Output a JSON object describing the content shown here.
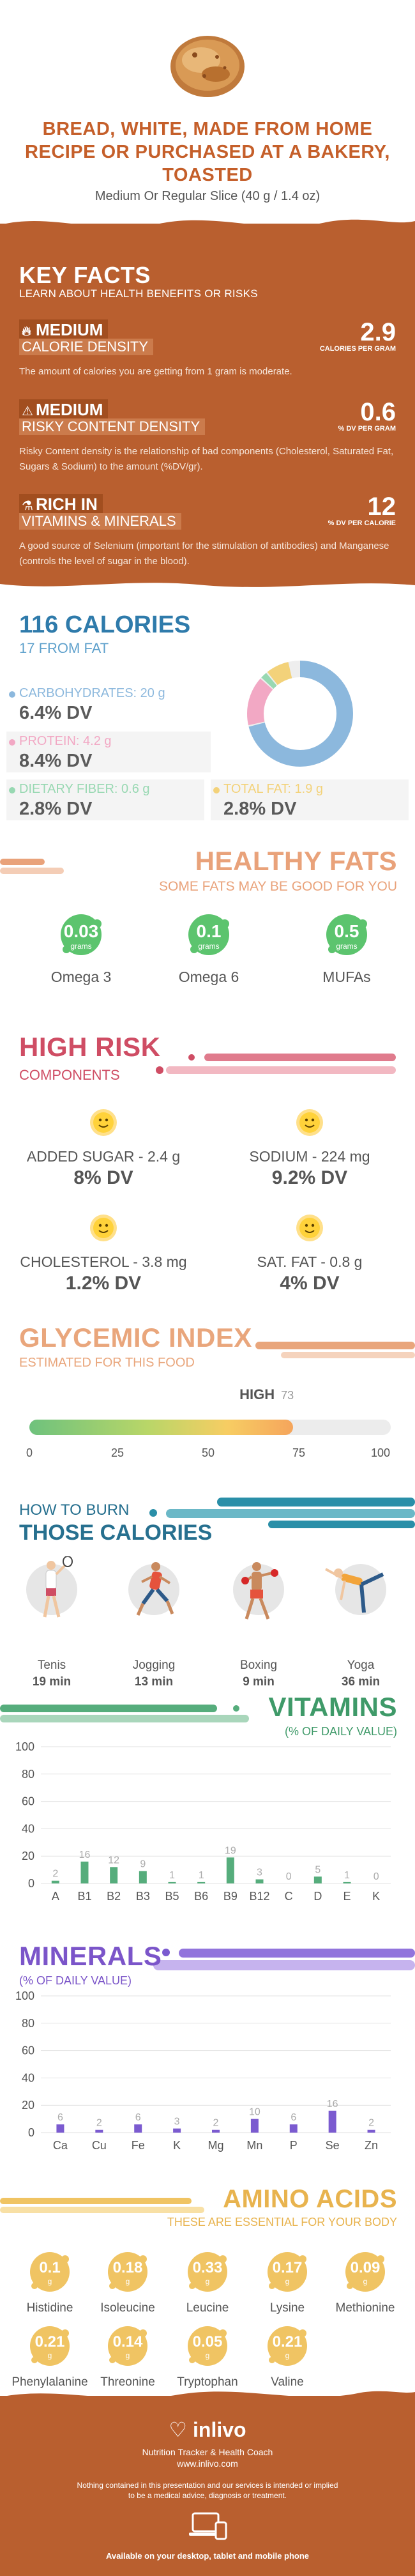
{
  "header": {
    "title": "BREAD, WHITE, MADE FROM HOME RECIPE OR PURCHASED AT A BAKERY, TOASTED",
    "serving": "Medium Or Regular Slice (40 g / 1.4 oz)"
  },
  "key_facts": {
    "title": "KEY FACTS",
    "subtitle": "LEARN ABOUT HEALTH BENEFITS OR RISKS",
    "items": [
      {
        "level": "MEDIUM",
        "name": "CALORIE DENSITY",
        "value": "2.9",
        "unit": "CALORIES PER GRAM",
        "description": "The amount of calories you are getting from 1 gram is moderate.",
        "icon": "flame-icon"
      },
      {
        "level": "MEDIUM",
        "name": "RISKY CONTENT DENSITY",
        "value": "0.6",
        "unit": "% DV PER GRAM",
        "description": "Risky Content density is the relationship of bad components (Cholesterol, Saturated Fat, Sugars & Sodium) to the amount (%DV/gr).",
        "icon": "warning-icon"
      },
      {
        "level": "RICH  IN",
        "name": "VITAMINS & MINERALS",
        "value": "12",
        "unit": "% DV PER CALORIE",
        "description": "A good source of Selenium (important for the stimulation of antibodies) and Manganese (controls the level of sugar in the blood).",
        "icon": "flask-icon"
      }
    ]
  },
  "calories": {
    "title": "116 CALORIES",
    "subtitle": "17 FROM FAT",
    "macros": [
      {
        "label": "CARBOHYDRATES:",
        "amount": "20 g",
        "dv": "6.4% DV",
        "color": "#8cb8dd",
        "share": 0.71
      },
      {
        "label": "PROTEIN:",
        "amount": "4.2 g",
        "dv": "8.4% DV",
        "color": "#f2a8c4",
        "share": 0.15
      },
      {
        "label": "DIETARY FIBER:",
        "amount": "0.6 g",
        "dv": "2.8% DV",
        "color": "#98d8b2",
        "share": 0.02
      },
      {
        "label": "TOTAL FAT:",
        "amount": "1.9 g",
        "dv": "2.8% DV",
        "color": "#f3d27a",
        "share": 0.07
      }
    ]
  },
  "healthy_fats": {
    "title": "HEALTHY FATS",
    "subtitle": "SOME FATS MAY BE GOOD FOR YOU",
    "unit": "grams",
    "color": "#5cc46e",
    "items": [
      {
        "name": "Omega 3",
        "value": "0.03"
      },
      {
        "name": "Omega 6",
        "value": "0.1"
      },
      {
        "name": "MUFAs",
        "value": "0.5"
      }
    ]
  },
  "high_risk": {
    "title": "HIGH RISK",
    "subtitle": "COMPONENTS",
    "items": [
      {
        "name": "ADDED SUGAR",
        "amount": " - 2.4 g",
        "dv": "8% DV"
      },
      {
        "name": "SODIUM",
        "amount": " - 224 mg",
        "dv": "9.2% DV"
      },
      {
        "name": "CHOLESTEROL",
        "amount": " - 3.8 mg",
        "dv": "1.2% DV"
      },
      {
        "name": "SAT. FAT",
        "amount": " - 0.8 g",
        "dv": "4% DV"
      }
    ]
  },
  "glycemic": {
    "title": "GLYCEMIC INDEX",
    "subtitle": "ESTIMATED FOR THIS FOOD",
    "level": "HIGH",
    "value": 73,
    "value_text": "73",
    "max": 100,
    "ticks": [
      "0",
      "25",
      "50",
      "75",
      "100"
    ]
  },
  "burn": {
    "title_line1": "HOW TO BURN",
    "title_line2": "THOSE CALORIES",
    "activities": [
      {
        "name": "Tenis",
        "minutes": "19 min",
        "icon": "tennis-player-icon"
      },
      {
        "name": "Jogging",
        "minutes": "13 min",
        "icon": "jogger-icon"
      },
      {
        "name": "Boxing",
        "minutes": "9 min",
        "icon": "boxer-icon"
      },
      {
        "name": "Yoga",
        "minutes": "36 min",
        "icon": "yoga-icon"
      }
    ]
  },
  "vitamins": {
    "title": "VITAMINS",
    "subtitle": "(% OF DAILY VALUE)",
    "color": "#56ad7c",
    "y_ticks": [
      "0",
      "20",
      "40",
      "60",
      "80",
      "100"
    ],
    "ylim": [
      0,
      100
    ],
    "categories": [
      "A",
      "B1",
      "B2",
      "B3",
      "B5",
      "B6",
      "B9",
      "B12",
      "C",
      "D",
      "E",
      "K"
    ],
    "values": [
      2,
      16,
      12,
      9,
      1,
      1,
      19,
      3,
      0,
      5,
      1,
      0
    ]
  },
  "minerals": {
    "title": "MINERALS",
    "subtitle": "(% OF DAILY VALUE)",
    "color": "#7b5bd0",
    "y_ticks": [
      "0",
      "20",
      "40",
      "60",
      "80",
      "100"
    ],
    "ylim": [
      0,
      100
    ],
    "categories": [
      "Ca",
      "Cu",
      "Fe",
      "K",
      "Mg",
      "Mn",
      "P",
      "Se",
      "Zn"
    ],
    "values": [
      6,
      2,
      6,
      3,
      2,
      10,
      6,
      16,
      2
    ]
  },
  "amino_acids": {
    "title": "AMINO ACIDS",
    "subtitle": "THESE ARE ESSENTIAL FOR YOUR BODY",
    "unit": "g",
    "color": "#f0c463",
    "items": [
      {
        "name": "Histidine",
        "value": "0.1"
      },
      {
        "name": "Isoleucine",
        "value": "0.18"
      },
      {
        "name": "Leucine",
        "value": "0.33"
      },
      {
        "name": "Lysine",
        "value": "0.17"
      },
      {
        "name": "Methionine",
        "value": "0.09"
      },
      {
        "name": "Phenylalanine",
        "value": "0.21"
      },
      {
        "name": "Threonine",
        "value": "0.14"
      },
      {
        "name": "Tryptophan",
        "value": "0.05"
      },
      {
        "name": "Valine",
        "value": "0.21"
      }
    ]
  },
  "footer": {
    "logo": "inlivo",
    "tagline": "Nutrition Tracker & Health Coach",
    "site": "www.inlivo.com",
    "disclaimer": "Nothing contained in this presentation and our services is intended or implied to be a medical advice, diagnosis or treatment.",
    "available": "Available on your desktop, tablet and mobile phone"
  }
}
